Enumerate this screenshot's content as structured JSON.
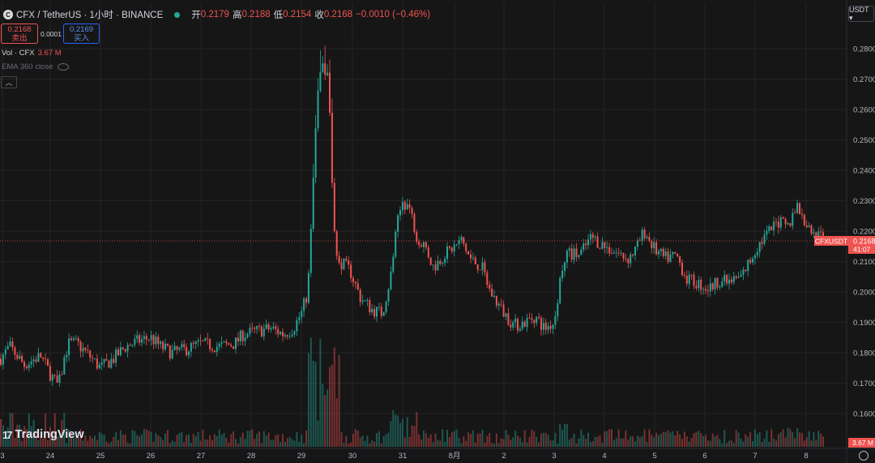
{
  "header": {
    "logo_icon": "cfx-logo-icon",
    "symbol": "CFX / TetherUS · 1小时 · BINANCE",
    "status_color": "#26a69a",
    "open_label": "开",
    "open": "0.2179",
    "high_label": "高",
    "high": "0.2188",
    "low_label": "低",
    "low": "0.2154",
    "close_label": "收",
    "close": "0.2168",
    "change": "−0.0010 (−0.46%)"
  },
  "trade": {
    "sell_price": "0.2168",
    "sell_label": "卖出",
    "spread": "0.0001",
    "buy_price": "0.2169",
    "buy_label": "买入"
  },
  "indicators": {
    "vol_label": "Vol · CFX",
    "vol_value": "3.67 M",
    "ema_label": "EMA 360 close"
  },
  "currency": "USDT ▾",
  "brand": "TradingView",
  "price_tag": {
    "symbol": "CFXUSDT",
    "price": "0.2168",
    "countdown": "41:07"
  },
  "volume_tag": "3.67 M",
  "colors": {
    "up": "#26a69a",
    "down": "#ef5350",
    "background": "#161616",
    "grid": "#242424"
  },
  "chart_data": {
    "type": "candlestick",
    "y_axis": {
      "ticks": [
        "0.2800",
        "0.2700",
        "0.2600",
        "0.2500",
        "0.2400",
        "0.2300",
        "0.2200",
        "0.2100",
        "0.2000",
        "0.1900",
        "0.1800",
        "0.1700",
        "0.1600"
      ],
      "range": [
        0.155,
        0.283
      ]
    },
    "x_axis": {
      "ticks": [
        "3",
        "24",
        "25",
        "26",
        "27",
        "28",
        "29",
        "30",
        "31",
        "8月",
        "2",
        "3",
        "4",
        "5",
        "6",
        "7",
        "8"
      ]
    },
    "last_price": 0.2168,
    "last_volume": "3.67M",
    "close_path_hourly": [
      {
        "day": "23",
        "price": 0.178
      },
      {
        "day": "24",
        "price": 0.183
      },
      {
        "day": "24.5",
        "price": 0.18
      },
      {
        "day": "25",
        "price": 0.176
      },
      {
        "day": "25.5",
        "price": 0.183
      },
      {
        "day": "26",
        "price": 0.186
      },
      {
        "day": "26.5",
        "price": 0.181
      },
      {
        "day": "27",
        "price": 0.183
      },
      {
        "day": "27.5",
        "price": 0.184
      },
      {
        "day": "28",
        "price": 0.186
      },
      {
        "day": "28.5",
        "price": 0.188
      },
      {
        "day": "29",
        "price": 0.187
      },
      {
        "day": "29.5",
        "price": 0.2
      },
      {
        "day": "29.6",
        "price": 0.272
      },
      {
        "day": "29.7",
        "price": 0.232
      },
      {
        "day": "30",
        "price": 0.208
      },
      {
        "day": "30.5",
        "price": 0.195
      },
      {
        "day": "31",
        "price": 0.23
      },
      {
        "day": "31.5",
        "price": 0.21
      },
      {
        "day": "8月",
        "price": 0.213
      },
      {
        "day": "8月.5",
        "price": 0.215
      },
      {
        "day": "2",
        "price": 0.193
      },
      {
        "day": "2.5",
        "price": 0.188
      },
      {
        "day": "3",
        "price": 0.189
      },
      {
        "day": "3.5",
        "price": 0.213
      },
      {
        "day": "4",
        "price": 0.216
      },
      {
        "day": "4.5",
        "price": 0.213
      },
      {
        "day": "5",
        "price": 0.219
      },
      {
        "day": "5.5",
        "price": 0.211
      },
      {
        "day": "6",
        "price": 0.204
      },
      {
        "day": "6.5",
        "price": 0.202
      },
      {
        "day": "7",
        "price": 0.21
      },
      {
        "day": "7.5",
        "price": 0.222
      },
      {
        "day": "8",
        "price": 0.224
      },
      {
        "day": "8.3",
        "price": 0.2168
      }
    ]
  }
}
